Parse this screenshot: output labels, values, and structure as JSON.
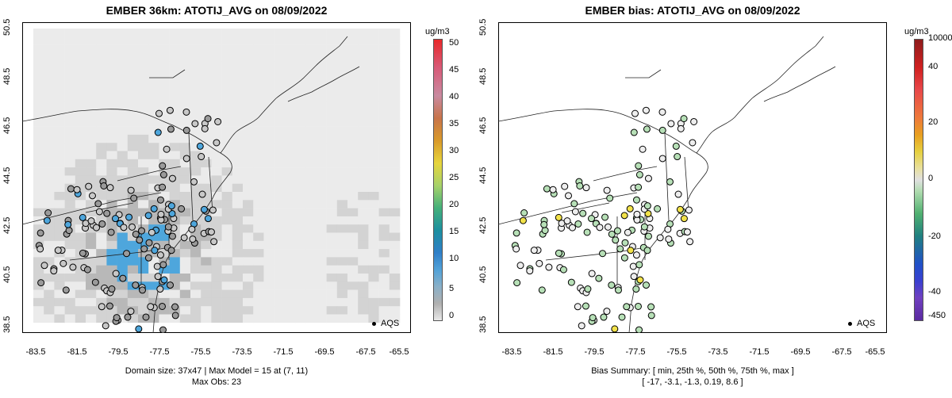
{
  "left": {
    "title": "EMBER 36km: ATOTIJ_AVG on 08/09/2022",
    "unit": "ug/m3",
    "colorbar_labels": [
      "50",
      "45",
      "40",
      "35",
      "30",
      "25",
      "20",
      "15",
      "10",
      "5",
      "0"
    ],
    "footer_line1": "Domain size: 37x47 | Max Model = 15 at (7, 11)",
    "footer_line2": "Max Obs: 23",
    "legend": "AQS"
  },
  "right": {
    "title": "EMBER bias: ATOTIJ_AVG on 08/09/2022",
    "unit": "ug/m3",
    "colorbar_labels": [
      "10000",
      "40",
      "20",
      "0",
      "-20",
      "-40",
      "-450"
    ],
    "footer_line1": "Bias Summary: [ min, 25th %, 50th %, 75th %, max ]",
    "footer_line2": "[ -17,   -3.1,   -1.3,   0.19,   8.6 ]",
    "legend": "AQS"
  },
  "axes": {
    "y_ticks": [
      "50.5",
      "48.5",
      "46.5",
      "44.5",
      "42.5",
      "40.5",
      "38.5"
    ],
    "x_ticks": [
      "-83.5",
      "-81.5",
      "-79.5",
      "-77.5",
      "-75.5",
      "-73.5",
      "-71.5",
      "-69.5",
      "-67.5",
      "-65.5"
    ]
  },
  "colors": {
    "grid_light": "#ebebeb",
    "grid_mid": "#d3d3d3",
    "grid_dark": "#b8b8b8",
    "blue_high": "#4ea6dc",
    "bias_green": "#b7e0b7",
    "bias_yellow": "#f2e24a"
  }
}
